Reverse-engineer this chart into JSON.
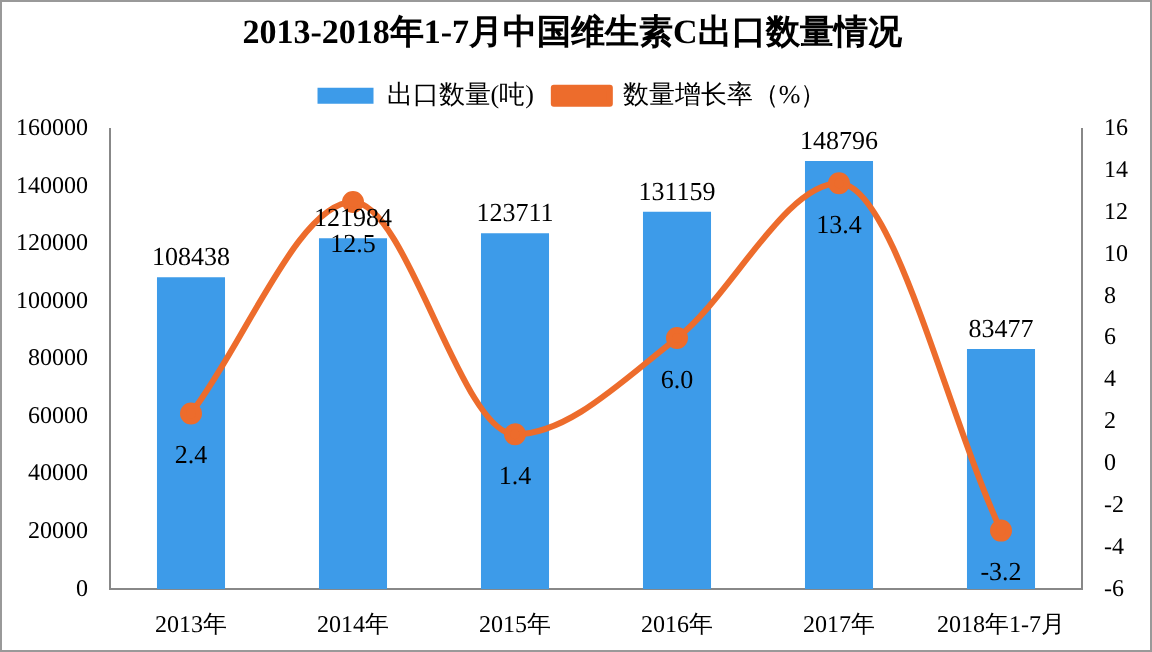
{
  "chart_data": {
    "type": "bar",
    "title": "2013-2018年1-7月中国维生素C出口数量情况",
    "categories": [
      "2013年",
      "2014年",
      "2015年",
      "2016年",
      "2017年",
      "2018年1-7月"
    ],
    "series": [
      {
        "name": "出口数量(吨)",
        "color": "#3d9be9",
        "values": [
          108438,
          121984,
          123711,
          131159,
          148796,
          83477
        ]
      },
      {
        "name": "数量增长率（%）",
        "type": "line",
        "axis": "y2",
        "color": "#ed6c2c",
        "values": [
          2.4,
          12.5,
          1.4,
          6.0,
          13.4,
          -3.2
        ],
        "value_labels": [
          "2.4",
          "12.5",
          "1.4",
          "6.0",
          "13.4",
          "-3.2"
        ]
      }
    ],
    "ylim": [
      0,
      160000
    ],
    "yticks": [
      0,
      20000,
      40000,
      60000,
      80000,
      100000,
      120000,
      140000,
      160000
    ],
    "y2lim": [
      -6,
      16
    ],
    "y2ticks": [
      -6,
      -4,
      -2,
      0,
      2,
      4,
      6,
      8,
      10,
      12,
      14,
      16
    ],
    "legend": "top",
    "grid": false,
    "marker": "circle",
    "data_labels": true
  }
}
